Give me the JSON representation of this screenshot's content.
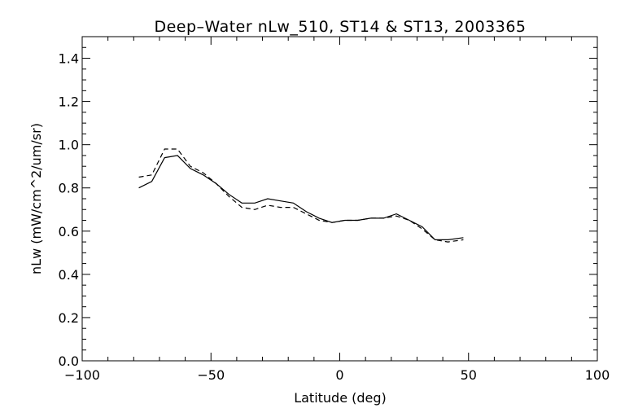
{
  "chart_data": {
    "type": "line",
    "title": "Deep–Water nLw_510, ST14 & ST13, 2003365",
    "xlabel": "Latitude (deg)",
    "ylabel": "nLw (mW/cm^2/um/sr)",
    "xlim": [
      -100,
      100
    ],
    "ylim": [
      0.0,
      1.5
    ],
    "xticks": [
      -100,
      -50,
      0,
      50,
      100
    ],
    "xtick_labels": [
      "−100",
      "−50",
      "0",
      "50",
      "100"
    ],
    "xminor_step": 10,
    "yticks": [
      0.0,
      0.2,
      0.4,
      0.6,
      0.8,
      1.0,
      1.2,
      1.4
    ],
    "ytick_labels": [
      "0.0",
      "0.2",
      "0.4",
      "0.6",
      "0.8",
      "1.0",
      "1.2",
      "1.4"
    ],
    "yminor_step": 0.05,
    "grid": false,
    "series": [
      {
        "style": "solid",
        "color": "#000000",
        "x": [
          -78,
          -73,
          -68,
          -63,
          -58,
          -53,
          -48,
          -43,
          -38,
          -33,
          -28,
          -23,
          -18,
          -13,
          -8,
          -3,
          2,
          7,
          12,
          17,
          22,
          27,
          32,
          37,
          42,
          48
        ],
        "y": [
          0.8,
          0.83,
          0.94,
          0.95,
          0.89,
          0.86,
          0.82,
          0.77,
          0.73,
          0.73,
          0.75,
          0.74,
          0.73,
          0.69,
          0.66,
          0.64,
          0.65,
          0.65,
          0.66,
          0.66,
          0.68,
          0.65,
          0.62,
          0.56,
          0.56,
          0.57
        ]
      },
      {
        "style": "dashed",
        "color": "#000000",
        "x": [
          -78,
          -73,
          -68,
          -63,
          -58,
          -53,
          -48,
          -43,
          -38,
          -33,
          -28,
          -23,
          -18,
          -13,
          -8,
          -3,
          2,
          7,
          12,
          17,
          22,
          27,
          32,
          37,
          42,
          48
        ],
        "y": [
          0.85,
          0.86,
          0.98,
          0.98,
          0.9,
          0.87,
          0.82,
          0.76,
          0.71,
          0.7,
          0.72,
          0.71,
          0.71,
          0.68,
          0.65,
          0.64,
          0.65,
          0.65,
          0.66,
          0.66,
          0.67,
          0.65,
          0.61,
          0.56,
          0.55,
          0.56
        ]
      }
    ]
  }
}
